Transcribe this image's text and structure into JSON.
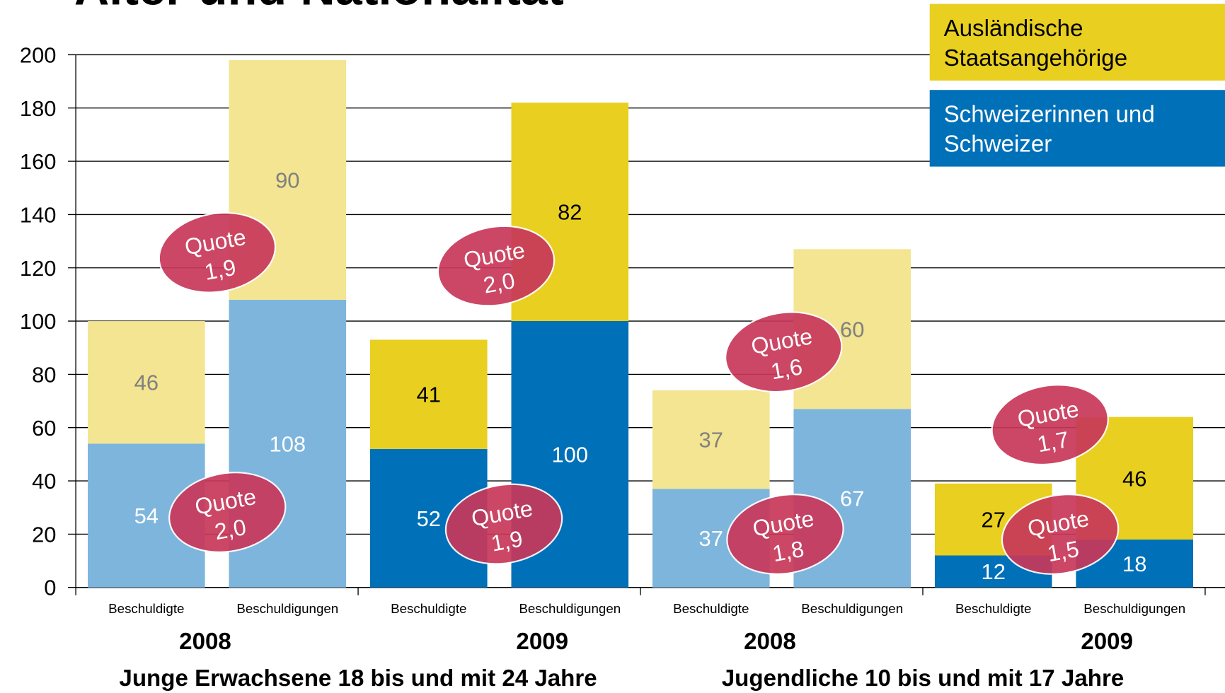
{
  "chart_data": {
    "type": "stacked_bar",
    "title": "Alter und Nationalität",
    "categories": [
      "Beschuldigte",
      "Beschuldigungen",
      "Beschuldigte",
      "Beschuldigungen",
      "Beschuldigte",
      "Beschuldigungen",
      "Beschuldigte",
      "Beschuldigungen"
    ],
    "year_groups": [
      "2008",
      "2009",
      "2008",
      "2009"
    ],
    "age_groups": [
      "Junge Erwachsene 18 bis und mit 24 Jahre",
      "Jugendliche 10 bis und mit 17 Jahre"
    ],
    "series": [
      {
        "name": "Schweizerinnen und Schweizer",
        "values": [
          54,
          108,
          52,
          100,
          37,
          67,
          12,
          18
        ],
        "colors": [
          "#7db5dd",
          "#7db5dd",
          "#0070b8",
          "#0070b8",
          "#7db5dd",
          "#7db5dd",
          "#0070b8",
          "#0070b8"
        ],
        "label_color": "#ffffff"
      },
      {
        "name": "Ausländische Staatsangehörige",
        "values": [
          46,
          90,
          41,
          82,
          37,
          60,
          27,
          46
        ],
        "colors": [
          "#f3e591",
          "#f3e591",
          "#e8cf20",
          "#e8cf20",
          "#f3e591",
          "#f3e591",
          "#e8cf20",
          "#e8cf20"
        ],
        "label_colors": [
          "#808080",
          "#808080",
          "#000000",
          "#000000",
          "#808080",
          "#808080",
          "#000000",
          "#000000"
        ]
      }
    ],
    "ylim": [
      0,
      200
    ],
    "yticks": [
      0,
      20,
      40,
      60,
      80,
      100,
      120,
      140,
      160,
      180,
      200
    ],
    "grid": true,
    "annotations": [
      [
        "Quote",
        "1,9"
      ],
      [
        "Quote",
        "2,0"
      ],
      [
        "Quote",
        "2,0"
      ],
      [
        "Quote",
        "1,9"
      ],
      [
        "Quote",
        "1,6"
      ],
      [
        "Quote",
        "1,8"
      ],
      [
        "Quote",
        "1,7"
      ],
      [
        "Quote",
        "1,5"
      ]
    ],
    "annotation_color": "#c8385a"
  }
}
